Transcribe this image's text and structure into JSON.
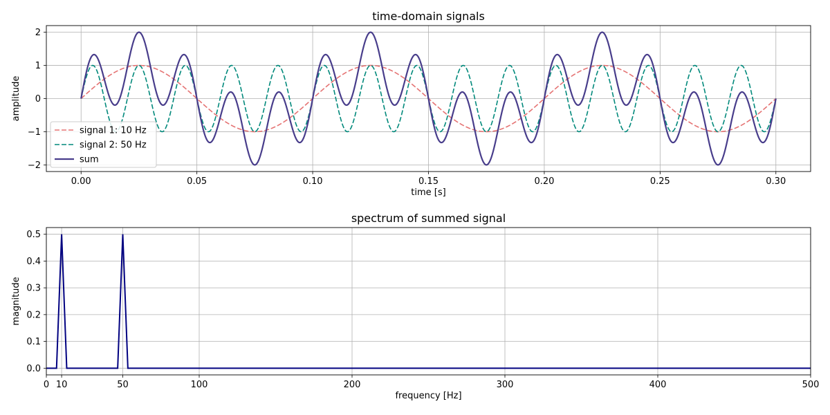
{
  "chart_data": [
    {
      "type": "line",
      "title": "time-domain signals",
      "xlabel": "time [s]",
      "ylabel": "amplitude",
      "xlim": [
        -0.015,
        0.315
      ],
      "ylim": [
        -2.2,
        2.2
      ],
      "xticks": [
        0.0,
        0.05,
        0.1,
        0.15,
        0.2,
        0.25,
        0.3
      ],
      "xtick_labels": [
        "0.00",
        "0.05",
        "0.10",
        "0.15",
        "0.20",
        "0.25",
        "0.30"
      ],
      "yticks": [
        -2,
        -1,
        0,
        1,
        2
      ],
      "ytick_labels": [
        "−2",
        "−1",
        "0",
        "1",
        "2"
      ],
      "grid": true,
      "legend_position": "lower-left",
      "series": [
        {
          "name": "signal 1: 10 Hz",
          "function": "sin",
          "frequency_hz": 10,
          "amplitude": 1,
          "color": "#e57373",
          "style": "dashed"
        },
        {
          "name": "signal 2: 50 Hz",
          "function": "sin",
          "frequency_hz": 50,
          "amplitude": 1,
          "color": "#00897b",
          "style": "dashed"
        },
        {
          "name": "sum",
          "function": "sum",
          "color": "#483d8b",
          "style": "solid"
        }
      ],
      "t_range": [
        0,
        0.3
      ]
    },
    {
      "type": "line",
      "title": "spectrum of summed signal",
      "xlabel": "frequency [Hz]",
      "ylabel": "magnitude",
      "xlim": [
        0,
        500
      ],
      "ylim": [
        -0.025,
        0.525
      ],
      "xticks": [
        0,
        10,
        50,
        100,
        200,
        300,
        400,
        500
      ],
      "xtick_labels": [
        "0",
        "10",
        "50",
        "100",
        "200",
        "300",
        "400",
        "500"
      ],
      "yticks": [
        0.0,
        0.1,
        0.2,
        0.3,
        0.4,
        0.5
      ],
      "ytick_labels": [
        "0.0",
        "0.1",
        "0.2",
        "0.3",
        "0.4",
        "0.5"
      ],
      "grid": true,
      "series": [
        {
          "color": "#000080",
          "x": [
            0,
            6.67,
            10,
            13.33,
            46.67,
            50,
            53.33,
            500
          ],
          "y": [
            0,
            0,
            0.5,
            0,
            0,
            0.5,
            0,
            0
          ]
        }
      ]
    }
  ]
}
